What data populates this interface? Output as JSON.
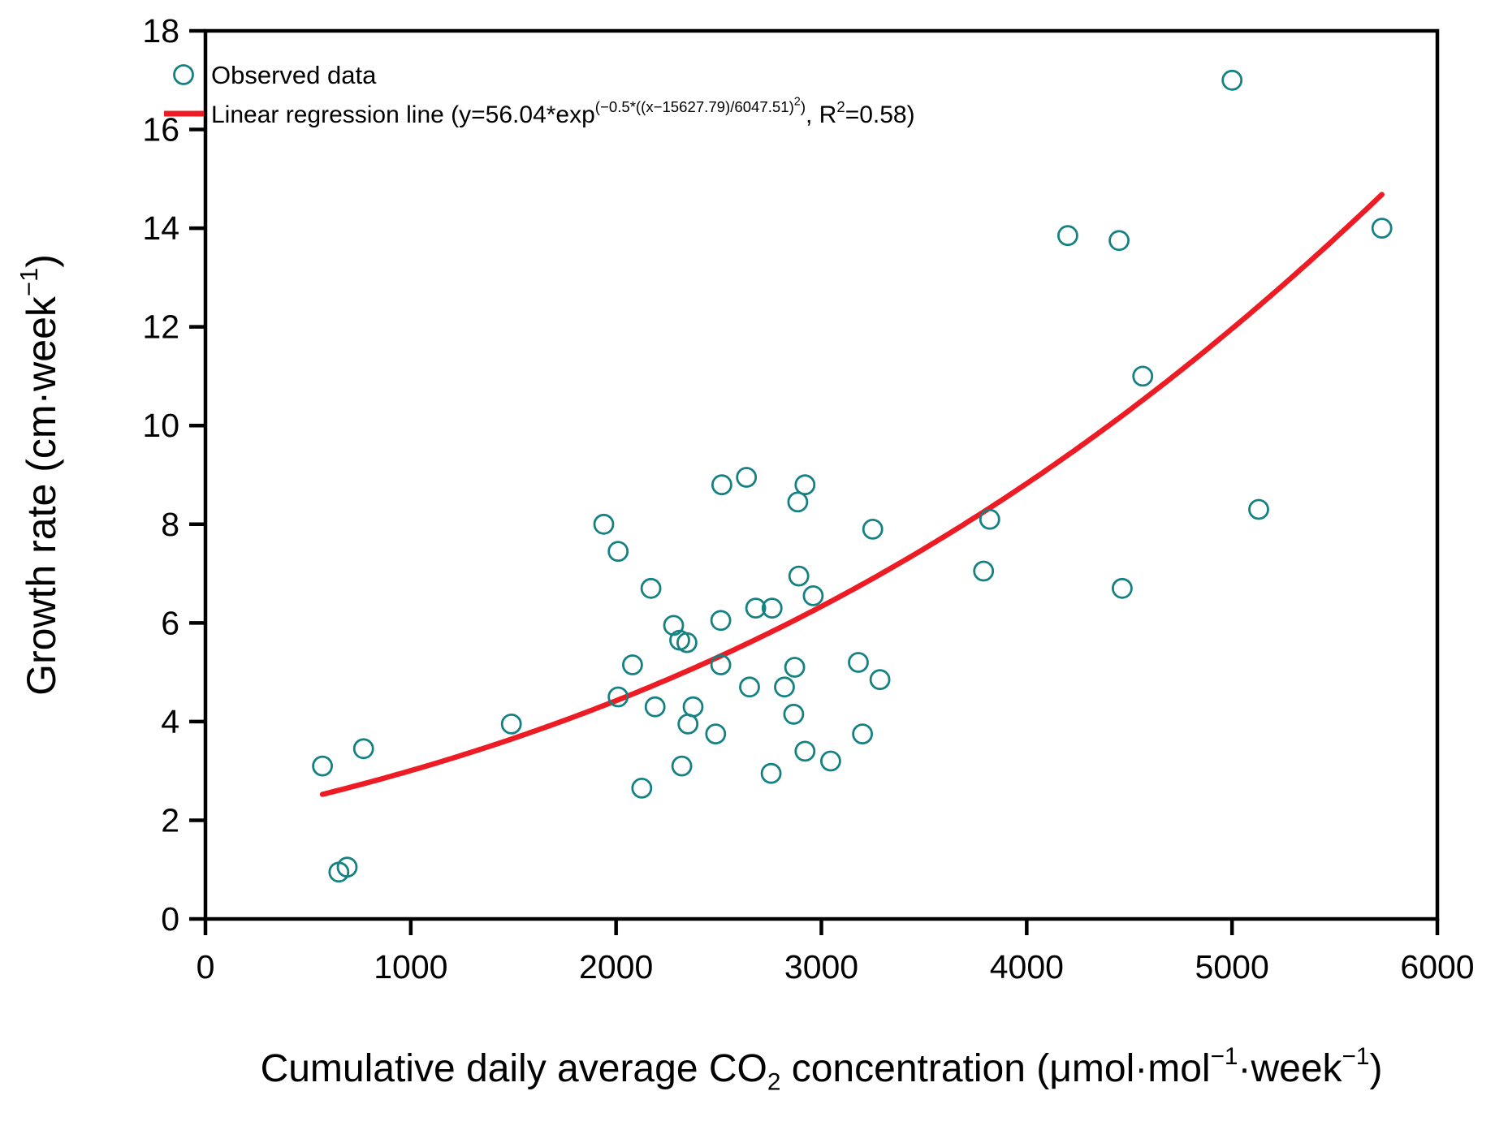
{
  "chart_data": {
    "type": "scatter",
    "title": "",
    "xlabel": "Cumulative daily average CO2 concentration (μmol·mol−1·week−1)",
    "xlabel_parts": [
      {
        "t": "Cumulative daily average CO",
        "s": "n"
      },
      {
        "t": "2",
        "s": "sub"
      },
      {
        "t": " concentration (μmol·mol",
        "s": "n"
      },
      {
        "t": "−1",
        "s": "sup"
      },
      {
        "t": "·week",
        "s": "n"
      },
      {
        "t": "−1",
        "s": "sup"
      },
      {
        "t": ")",
        "s": "n"
      }
    ],
    "ylabel": "Growth rate (cm·week−1)",
    "ylabel_parts": [
      {
        "t": "Growth rate (cm·week",
        "s": "n"
      },
      {
        "t": "−1",
        "s": "sup"
      },
      {
        "t": ")",
        "s": "n"
      }
    ],
    "xlim": [
      0,
      6000
    ],
    "ylim": [
      0,
      18
    ],
    "x_ticks": [
      "0",
      "1000",
      "2000",
      "3000",
      "4000",
      "5000",
      "6000"
    ],
    "y_ticks": [
      "0",
      "2",
      "4",
      "6",
      "8",
      "10",
      "12",
      "14",
      "16",
      "18"
    ],
    "grid": false,
    "legend_position": "top-left",
    "series": [
      {
        "name": "Observed data",
        "type": "scatter",
        "marker": "open-circle",
        "color": "#148183",
        "points": [
          [
            570,
            3.1
          ],
          [
            650,
            0.95
          ],
          [
            690,
            1.05
          ],
          [
            770,
            3.45
          ],
          [
            1490,
            3.95
          ],
          [
            1940,
            8.0
          ],
          [
            2010,
            7.45
          ],
          [
            2010,
            4.5
          ],
          [
            2080,
            5.15
          ],
          [
            2125,
            2.65
          ],
          [
            2170,
            6.7
          ],
          [
            2190,
            4.3
          ],
          [
            2280,
            5.95
          ],
          [
            2310,
            5.65
          ],
          [
            2345,
            5.6
          ],
          [
            2320,
            3.1
          ],
          [
            2350,
            3.95
          ],
          [
            2375,
            4.3
          ],
          [
            2485,
            3.75
          ],
          [
            2510,
            6.05
          ],
          [
            2510,
            5.15
          ],
          [
            2515,
            8.8
          ],
          [
            2635,
            8.95
          ],
          [
            2650,
            4.7
          ],
          [
            2680,
            6.3
          ],
          [
            2755,
            2.95
          ],
          [
            2760,
            6.3
          ],
          [
            2820,
            4.7
          ],
          [
            2865,
            4.15
          ],
          [
            2870,
            5.1
          ],
          [
            2885,
            8.45
          ],
          [
            2890,
            6.95
          ],
          [
            2920,
            8.8
          ],
          [
            2920,
            3.4
          ],
          [
            2960,
            6.55
          ],
          [
            3045,
            3.2
          ],
          [
            3180,
            5.2
          ],
          [
            3200,
            3.75
          ],
          [
            3250,
            7.9
          ],
          [
            3285,
            4.85
          ],
          [
            3790,
            7.05
          ],
          [
            3820,
            8.1
          ],
          [
            4200,
            13.85
          ],
          [
            4450,
            13.75
          ],
          [
            4465,
            6.7
          ],
          [
            4565,
            11.0
          ],
          [
            5000,
            17.0
          ],
          [
            5130,
            8.3
          ],
          [
            5730,
            14.0
          ]
        ]
      },
      {
        "name": "Linear regression line (y=56.04*exp(−0.5*((x−15627.79)/6047.51)²), R²=0.58)",
        "type": "line",
        "color": "#ed1c24",
        "equation": {
          "a": 56.04,
          "mu": 15627.79,
          "sigma": 6047.51
        },
        "r_squared": "0.58",
        "x_range": [
          570,
          5735
        ],
        "label_parts": [
          {
            "t": "Linear regression line (y=56.04*exp",
            "s": "n"
          },
          {
            "t": "(−0.5*((x−15627.79)/6047.51)",
            "s": "sup"
          },
          {
            "t": "2",
            "s": "supsup"
          },
          {
            "t": ")",
            "s": "sup"
          },
          {
            "t": ", R",
            "s": "n"
          },
          {
            "t": "2",
            "s": "sup"
          },
          {
            "t": "=0.58)",
            "s": "n"
          }
        ]
      }
    ]
  },
  "colors": {
    "marker": "#148183",
    "line": "#ed1c24",
    "axis": "#000000",
    "background": "#ffffff"
  }
}
